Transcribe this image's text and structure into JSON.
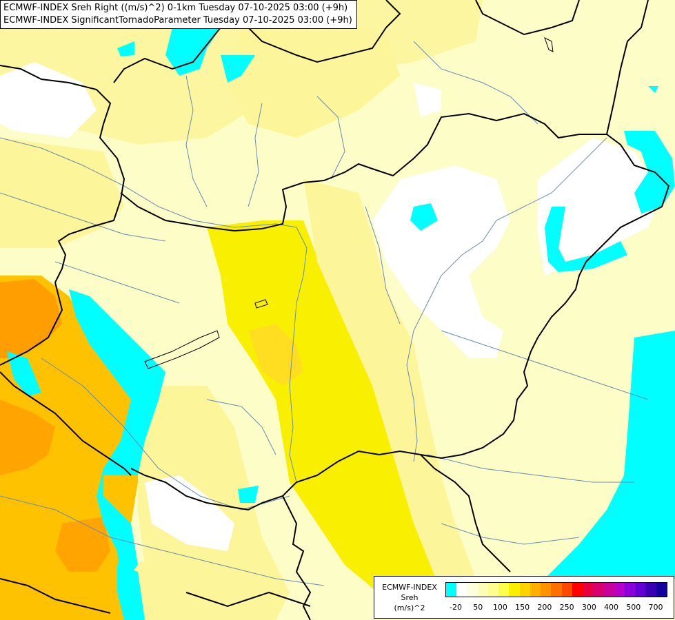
{
  "title": {
    "line1": "ECMWF-INDEX Sreh Right ((m/s)^2) 0-1km Tuesday 07-10-2025 03:00 (+9h)",
    "line2": "ECMWF-INDEX SignificantTornadoParameter Tuesday 07-10-2025 03:00 (+9h)"
  },
  "legend": {
    "label_line1": "ECMWF-INDEX",
    "label_line2": "Sreh",
    "label_line3": "(m/s)^2",
    "colors": [
      "#00ffff",
      "#ffffff",
      "#fdfde0",
      "#fdfdb8",
      "#fdfd90",
      "#fdfd50",
      "#f8f000",
      "#ffd400",
      "#ffb000",
      "#ff9200",
      "#ff6e00",
      "#ff4800",
      "#ff0000",
      "#e8003c",
      "#d8006c",
      "#c8009c",
      "#b400c8",
      "#8c00dc",
      "#6400d4",
      "#3c00b4",
      "#14009c"
    ],
    "ticks": [
      "-20",
      "50",
      "100",
      "150",
      "200",
      "250",
      "300",
      "400",
      "500",
      "700"
    ]
  },
  "palette": {
    "cyan": "#00ffff",
    "white": "#ffffff",
    "pale_yellow": "#fdfdc8",
    "light_yellow": "#fdf9a0",
    "yellow": "#f8f000",
    "gold": "#ffd400",
    "orange": "#ffb000",
    "dark_orange": "#ff9a00",
    "border": "#000000",
    "river": "#6a8ab0"
  }
}
